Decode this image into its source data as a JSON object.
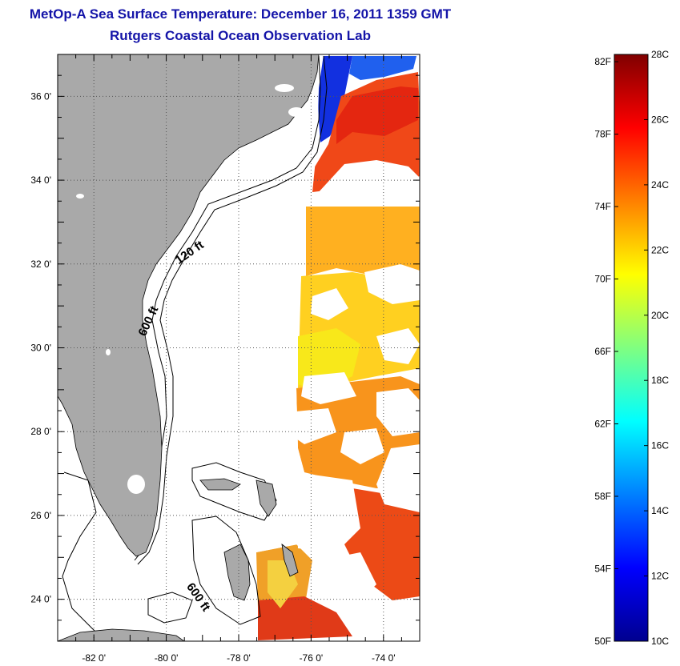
{
  "header": {
    "title": "MetOp-A Sea Surface Temperature:  December 16, 2011 1359 GMT",
    "subtitle": "Rutgers Coastal Ocean Observation Lab"
  },
  "map": {
    "lon_range": [
      -83,
      -73
    ],
    "lat_range": [
      23,
      37
    ],
    "lon_ticks": [
      {
        "value": -82,
        "label": "-82 0'"
      },
      {
        "value": -80,
        "label": "-80 0'"
      },
      {
        "value": -78,
        "label": "-78 0'"
      },
      {
        "value": -76,
        "label": "-76 0'"
      },
      {
        "value": -74,
        "label": "-74 0'"
      }
    ],
    "lat_ticks": [
      {
        "value": 36,
        "label": "36 0'"
      },
      {
        "value": 34,
        "label": "34 0'"
      },
      {
        "value": 32,
        "label": "32 0'"
      },
      {
        "value": 30,
        "label": "30 0'"
      },
      {
        "value": 28,
        "label": "28 0'"
      },
      {
        "value": 26,
        "label": "26 0'"
      },
      {
        "value": 24,
        "label": "24 0'"
      }
    ],
    "isobath_labels": [
      {
        "text": "120 ft",
        "lon": -79.3,
        "lat": 32.2,
        "angle": -35
      },
      {
        "text": "600 ft",
        "lon": -80.4,
        "lat": 30.6,
        "angle": -65
      },
      {
        "text": "600 ft",
        "lon": -79.2,
        "lat": 24.0,
        "angle": 55
      }
    ],
    "colors": {
      "land": "#a9a9a9",
      "ocean_nodata": "#ffffff",
      "grid": "#555555"
    }
  },
  "colorbar": {
    "celsius_labels": [
      "28C",
      "26C",
      "24C",
      "22C",
      "20C",
      "18C",
      "16C",
      "14C",
      "12C",
      "10C"
    ],
    "fahrenheit_labels": [
      "82F",
      "78F",
      "74F",
      "70F",
      "66F",
      "62F",
      "58F",
      "54F",
      "50F"
    ],
    "range_c": [
      10,
      28
    ],
    "colormap": [
      "#00008f",
      "#0000ff",
      "#0080ff",
      "#00ffff",
      "#80ff80",
      "#ffff00",
      "#ff8000",
      "#ff0000",
      "#800000"
    ]
  }
}
